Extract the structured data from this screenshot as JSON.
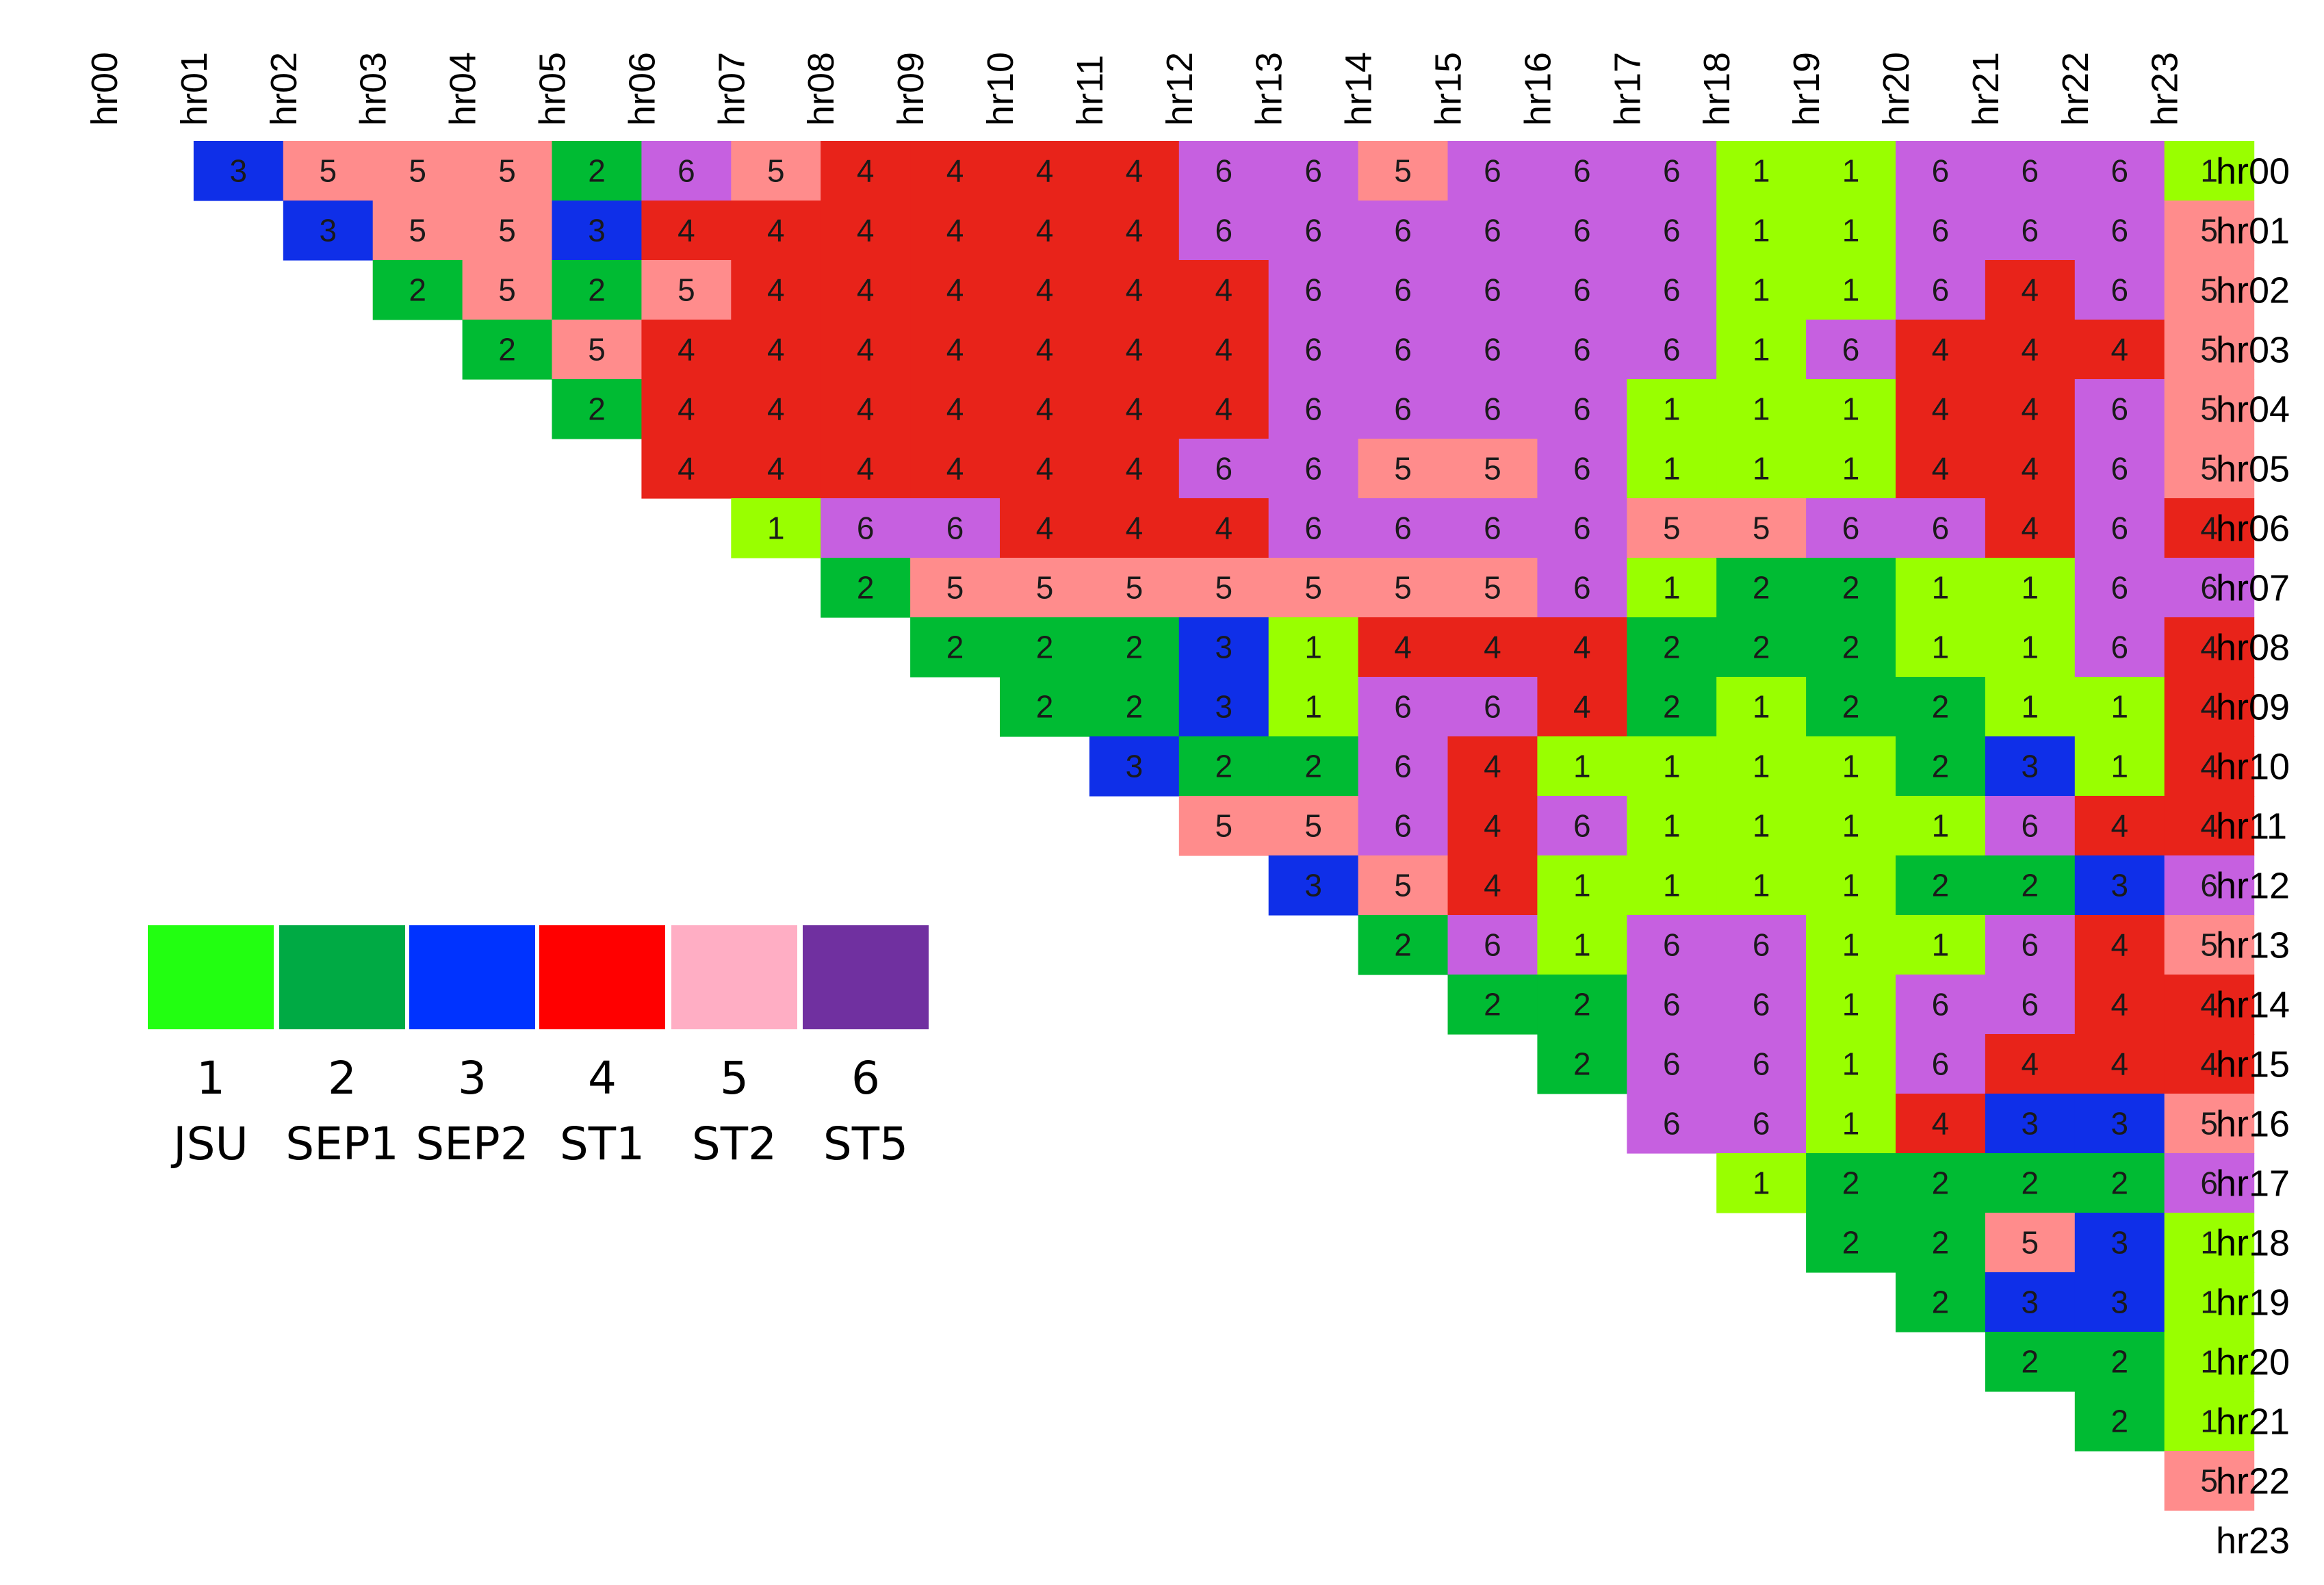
{
  "chart_data": {
    "type": "heatmap",
    "labels": [
      "hr00",
      "hr01",
      "hr02",
      "hr03",
      "hr04",
      "hr05",
      "hr06",
      "hr07",
      "hr08",
      "hr09",
      "hr10",
      "hr11",
      "hr12",
      "hr13",
      "hr14",
      "hr15",
      "hr16",
      "hr17",
      "hr18",
      "hr19",
      "hr20",
      "hr21",
      "hr22",
      "hr23"
    ],
    "matrix": [
      [
        null,
        3,
        5,
        5,
        5,
        2,
        6,
        5,
        4,
        4,
        4,
        4,
        6,
        6,
        5,
        6,
        6,
        6,
        1,
        1,
        6,
        6,
        6,
        1
      ],
      [
        null,
        null,
        3,
        5,
        5,
        3,
        4,
        4,
        4,
        4,
        4,
        4,
        6,
        6,
        6,
        6,
        6,
        6,
        1,
        1,
        6,
        6,
        6,
        5
      ],
      [
        null,
        null,
        null,
        2,
        5,
        2,
        5,
        4,
        4,
        4,
        4,
        4,
        4,
        6,
        6,
        6,
        6,
        6,
        1,
        1,
        6,
        4,
        6,
        5
      ],
      [
        null,
        null,
        null,
        null,
        2,
        5,
        4,
        4,
        4,
        4,
        4,
        4,
        4,
        6,
        6,
        6,
        6,
        6,
        1,
        6,
        4,
        4,
        4,
        5
      ],
      [
        null,
        null,
        null,
        null,
        null,
        2,
        4,
        4,
        4,
        4,
        4,
        4,
        4,
        6,
        6,
        6,
        6,
        1,
        1,
        1,
        4,
        4,
        6,
        5
      ],
      [
        null,
        null,
        null,
        null,
        null,
        null,
        4,
        4,
        4,
        4,
        4,
        4,
        6,
        6,
        5,
        5,
        6,
        1,
        1,
        1,
        4,
        4,
        6,
        5
      ],
      [
        null,
        null,
        null,
        null,
        null,
        null,
        null,
        1,
        6,
        6,
        4,
        4,
        4,
        6,
        6,
        6,
        6,
        5,
        5,
        6,
        6,
        4,
        6,
        4
      ],
      [
        null,
        null,
        null,
        null,
        null,
        null,
        null,
        null,
        2,
        5,
        5,
        5,
        5,
        5,
        5,
        5,
        6,
        1,
        2,
        2,
        1,
        1,
        6,
        6
      ],
      [
        null,
        null,
        null,
        null,
        null,
        null,
        null,
        null,
        null,
        2,
        2,
        2,
        3,
        1,
        4,
        4,
        4,
        2,
        2,
        2,
        1,
        1,
        6,
        4
      ],
      [
        null,
        null,
        null,
        null,
        null,
        null,
        null,
        null,
        null,
        null,
        2,
        2,
        3,
        1,
        6,
        6,
        4,
        2,
        1,
        2,
        2,
        1,
        1,
        4
      ],
      [
        null,
        null,
        null,
        null,
        null,
        null,
        null,
        null,
        null,
        null,
        null,
        3,
        2,
        2,
        6,
        4,
        1,
        1,
        1,
        1,
        2,
        3,
        1,
        4
      ],
      [
        null,
        null,
        null,
        null,
        null,
        null,
        null,
        null,
        null,
        null,
        null,
        null,
        5,
        5,
        6,
        4,
        6,
        1,
        1,
        1,
        1,
        6,
        4,
        4
      ],
      [
        null,
        null,
        null,
        null,
        null,
        null,
        null,
        null,
        null,
        null,
        null,
        null,
        null,
        3,
        5,
        4,
        1,
        1,
        1,
        1,
        2,
        2,
        3,
        6
      ],
      [
        null,
        null,
        null,
        null,
        null,
        null,
        null,
        null,
        null,
        null,
        null,
        null,
        null,
        null,
        2,
        6,
        1,
        6,
        6,
        1,
        1,
        6,
        4,
        5
      ],
      [
        null,
        null,
        null,
        null,
        null,
        null,
        null,
        null,
        null,
        null,
        null,
        null,
        null,
        null,
        null,
        2,
        2,
        6,
        6,
        1,
        6,
        6,
        4,
        4
      ],
      [
        null,
        null,
        null,
        null,
        null,
        null,
        null,
        null,
        null,
        null,
        null,
        null,
        null,
        null,
        null,
        null,
        2,
        6,
        6,
        1,
        6,
        4,
        4,
        4
      ],
      [
        null,
        null,
        null,
        null,
        null,
        null,
        null,
        null,
        null,
        null,
        null,
        null,
        null,
        null,
        null,
        null,
        null,
        6,
        6,
        1,
        4,
        3,
        3,
        5
      ],
      [
        null,
        null,
        null,
        null,
        null,
        null,
        null,
        null,
        null,
        null,
        null,
        null,
        null,
        null,
        null,
        null,
        null,
        null,
        1,
        2,
        2,
        2,
        2,
        6
      ],
      [
        null,
        null,
        null,
        null,
        null,
        null,
        null,
        null,
        null,
        null,
        null,
        null,
        null,
        null,
        null,
        null,
        null,
        null,
        null,
        2,
        2,
        5,
        3,
        1
      ],
      [
        null,
        null,
        null,
        null,
        null,
        null,
        null,
        null,
        null,
        null,
        null,
        null,
        null,
        null,
        null,
        null,
        null,
        null,
        null,
        null,
        2,
        3,
        3,
        1
      ],
      [
        null,
        null,
        null,
        null,
        null,
        null,
        null,
        null,
        null,
        null,
        null,
        null,
        null,
        null,
        null,
        null,
        null,
        null,
        null,
        null,
        null,
        2,
        2,
        1
      ],
      [
        null,
        null,
        null,
        null,
        null,
        null,
        null,
        null,
        null,
        null,
        null,
        null,
        null,
        null,
        null,
        null,
        null,
        null,
        null,
        null,
        null,
        null,
        2,
        1
      ],
      [
        null,
        null,
        null,
        null,
        null,
        null,
        null,
        null,
        null,
        null,
        null,
        null,
        null,
        null,
        null,
        null,
        null,
        null,
        null,
        null,
        null,
        null,
        null,
        5
      ],
      [
        null,
        null,
        null,
        null,
        null,
        null,
        null,
        null,
        null,
        null,
        null,
        null,
        null,
        null,
        null,
        null,
        null,
        null,
        null,
        null,
        null,
        null,
        null,
        null
      ]
    ],
    "cell_colors": {
      "1": "#99ff00",
      "2": "#00bb33",
      "3": "#0f2fe8",
      "4": "#e8231a",
      "5": "#ff8c8c",
      "6": "#c660e0"
    },
    "legend": [
      {
        "value": "1",
        "name": "JSU",
        "color": "#22ff11"
      },
      {
        "value": "2",
        "name": "SEP1",
        "color": "#00aa44"
      },
      {
        "value": "3",
        "name": "SEP2",
        "color": "#0033ff"
      },
      {
        "value": "4",
        "name": "ST1",
        "color": "#ff0000"
      },
      {
        "value": "5",
        "name": "ST2",
        "color": "#ffaec4"
      },
      {
        "value": "6",
        "name": "ST5",
        "color": "#7030a0"
      }
    ]
  }
}
